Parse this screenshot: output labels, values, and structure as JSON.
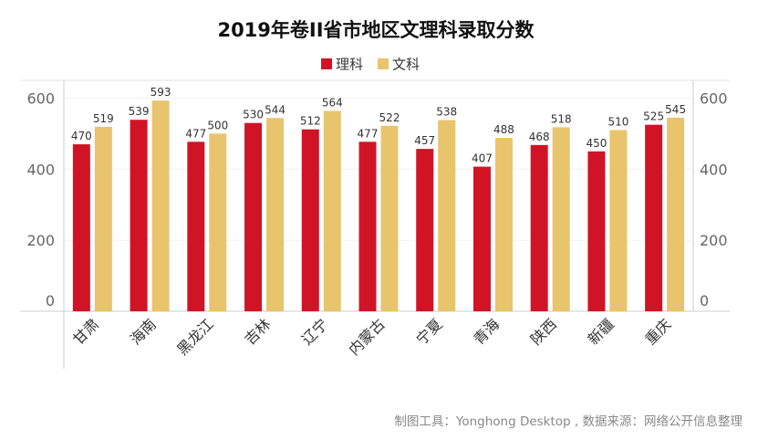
{
  "chart_data": {
    "type": "bar",
    "title": "2019年卷II省市地区文理科录取分数",
    "categories": [
      "甘肃",
      "海南",
      "黑龙江",
      "吉林",
      "辽宁",
      "内蒙古",
      "宁夏",
      "青海",
      "陕西",
      "新疆",
      "重庆"
    ],
    "series": [
      {
        "name": "理科",
        "color": "#d01426",
        "values": [
          470,
          539,
          477,
          530,
          512,
          477,
          457,
          407,
          468,
          450,
          525
        ]
      },
      {
        "name": "文科",
        "color": "#e8c46c",
        "values": [
          519,
          593,
          500,
          544,
          564,
          522,
          538,
          488,
          518,
          510,
          545
        ]
      }
    ],
    "ylim": [
      0,
      650
    ],
    "yticks": [
      0,
      200,
      400,
      600
    ],
    "xlabel": "",
    "ylabel": "",
    "legend_position": "top-center",
    "dual_axis_labels": true,
    "grid": true
  },
  "footer": {
    "source_text": "制图工具：Yonghong Desktop , 数据来源：网络公开信息整理"
  }
}
